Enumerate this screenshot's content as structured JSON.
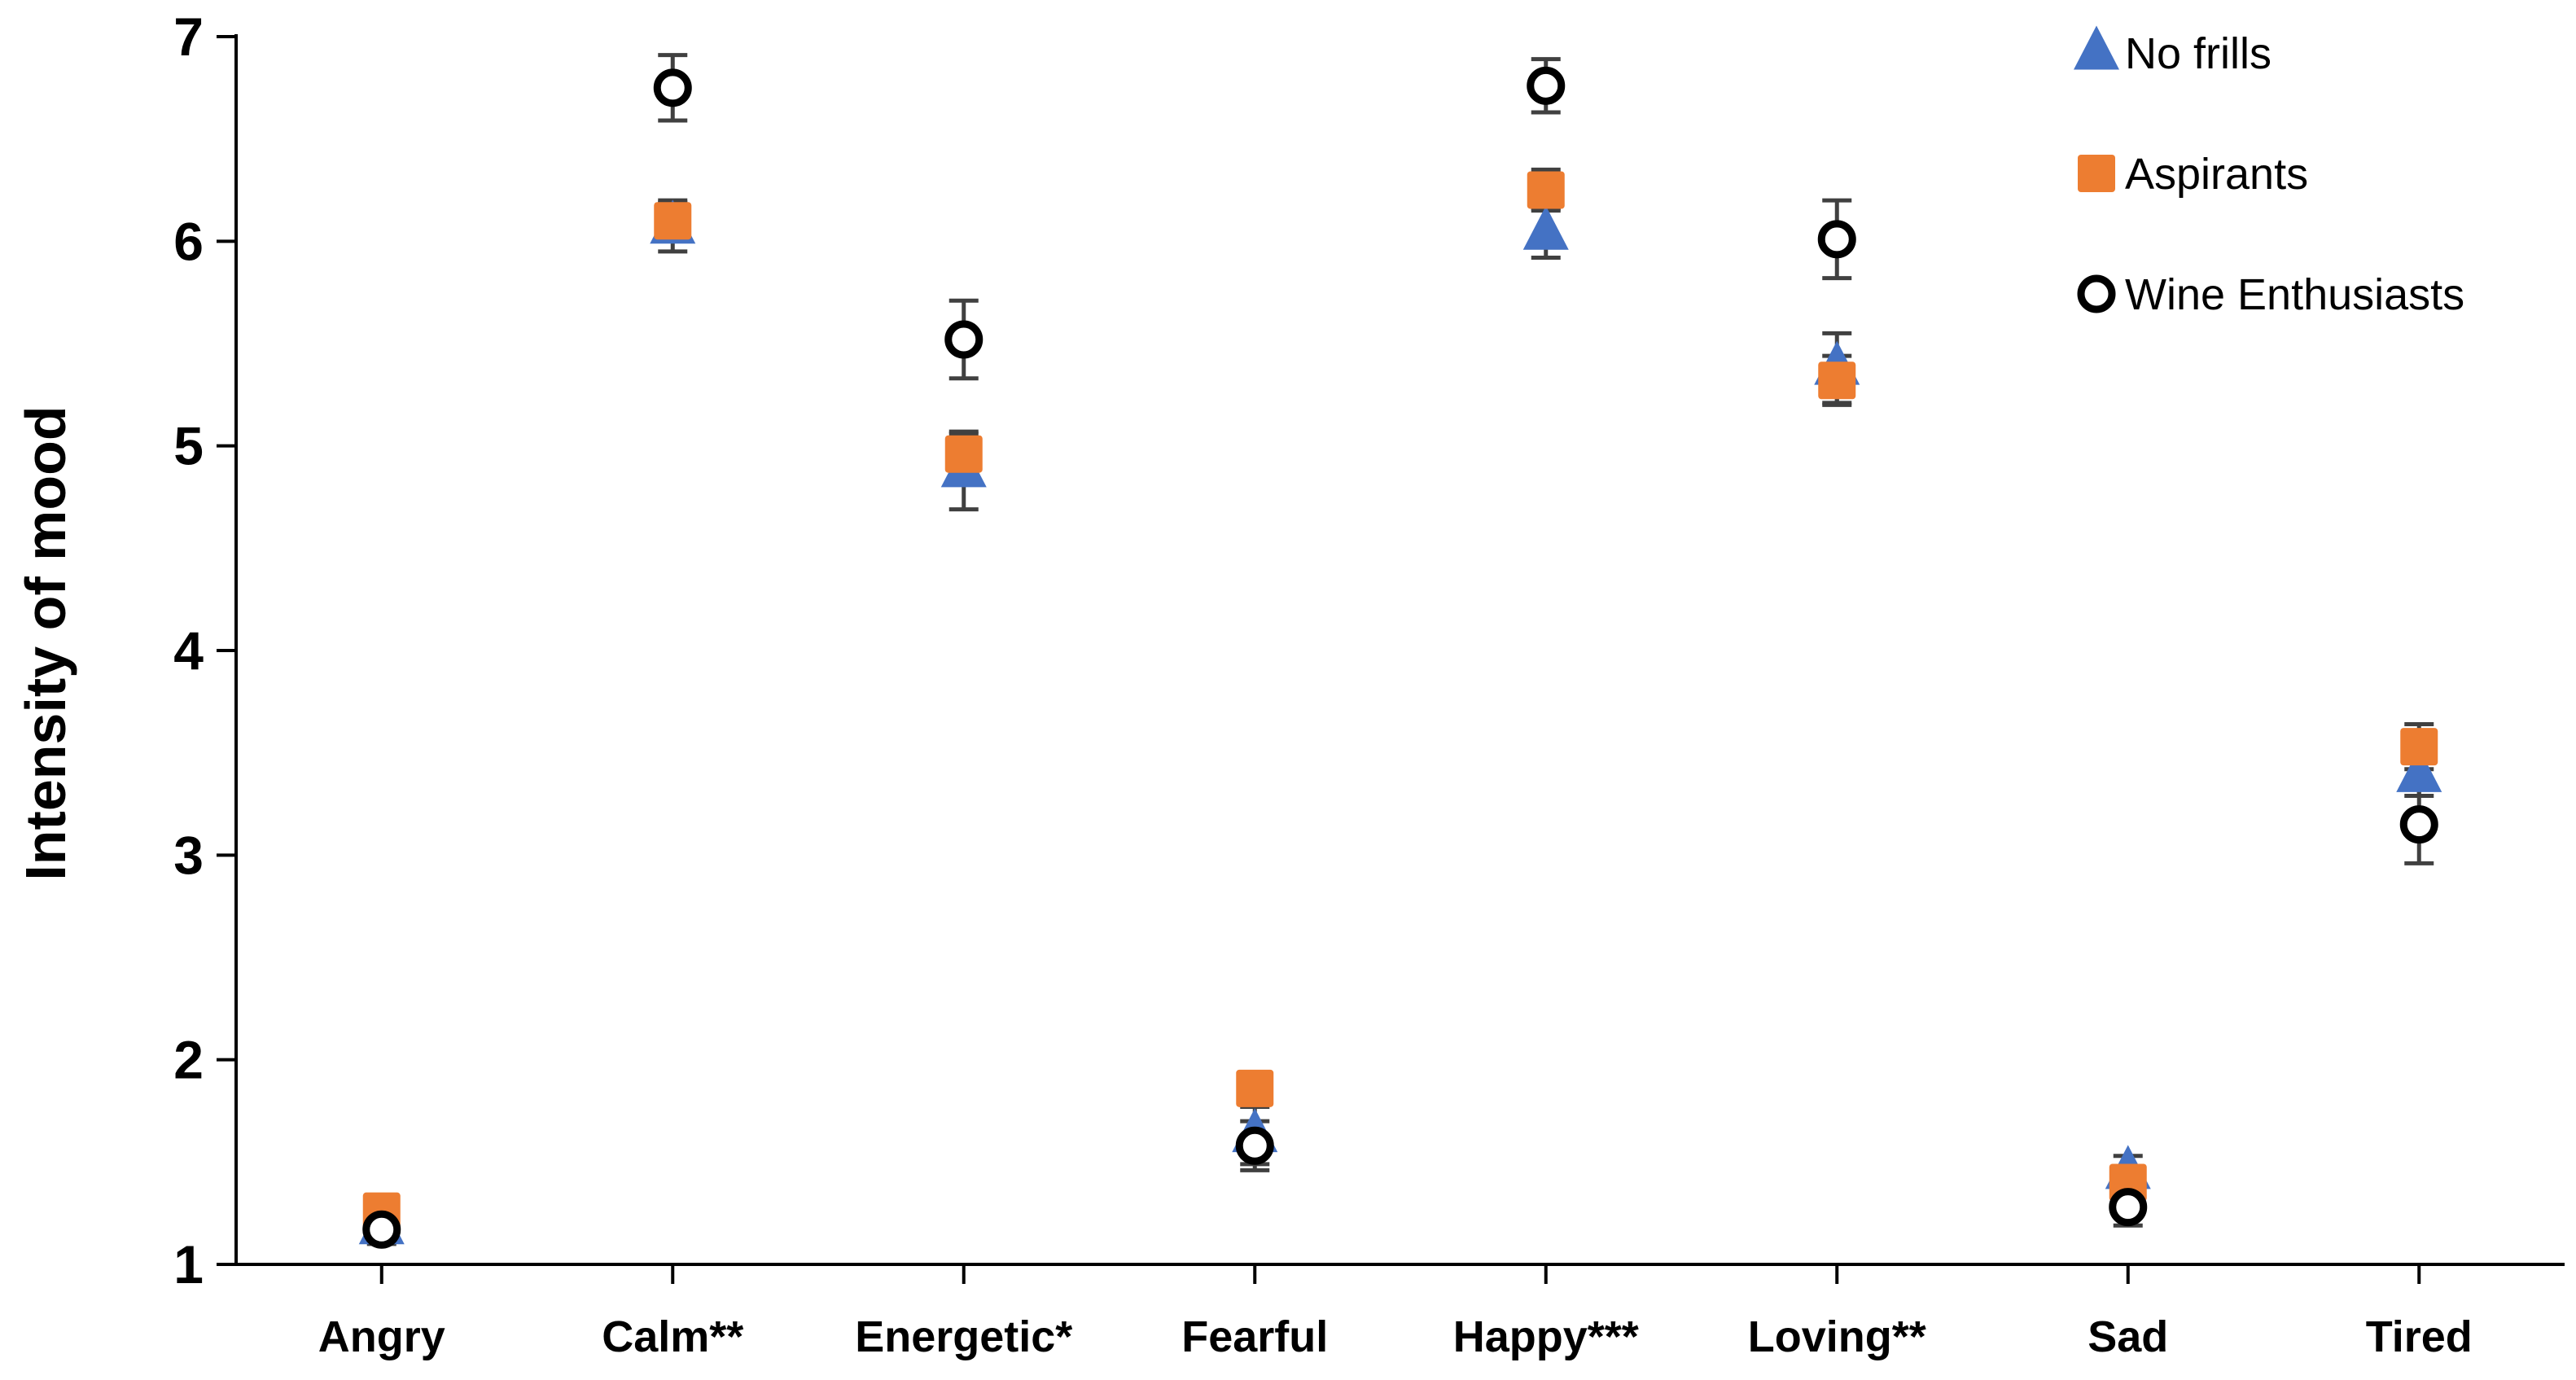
{
  "chart_data": {
    "type": "scatter",
    "categories": [
      "Angry",
      "Calm**",
      "Energetic*",
      "Fearful",
      "Happy***",
      "Loving**",
      "Sad",
      "Tired"
    ],
    "ylabel": "Intensity of mood",
    "xlabel": "",
    "ylim": [
      1,
      7
    ],
    "yticks": [
      1,
      2,
      3,
      4,
      5,
      6,
      7
    ],
    "grid": false,
    "legend_position": "top-right",
    "series": [
      {
        "name": "No frills",
        "marker": "triangle",
        "color": "#4472C4",
        "values": [
          1.18,
          6.07,
          4.88,
          1.63,
          6.04,
          5.38,
          1.45,
          3.39
        ],
        "error": [
          0.05,
          0.12,
          0.19,
          0.14,
          0.12,
          0.17,
          0.08,
          0.1
        ]
      },
      {
        "name": "Aspirants",
        "marker": "square",
        "color": "#ED7D31",
        "values": [
          1.26,
          6.1,
          4.96,
          1.86,
          6.25,
          5.32,
          1.4,
          3.53
        ],
        "error": [
          0.05,
          0.1,
          0.1,
          0.08,
          0.1,
          0.12,
          0.08,
          0.11
        ]
      },
      {
        "name": "Wine Enthusiasts",
        "marker": "circle-open",
        "color": "#000000",
        "values": [
          1.17,
          6.75,
          5.52,
          1.58,
          6.76,
          6.01,
          1.28,
          3.15
        ],
        "error": [
          0.07,
          0.16,
          0.19,
          0.12,
          0.13,
          0.19,
          0.09,
          0.19
        ]
      }
    ]
  },
  "colors": {
    "axis": "#000000",
    "error_bar": "#404040"
  }
}
